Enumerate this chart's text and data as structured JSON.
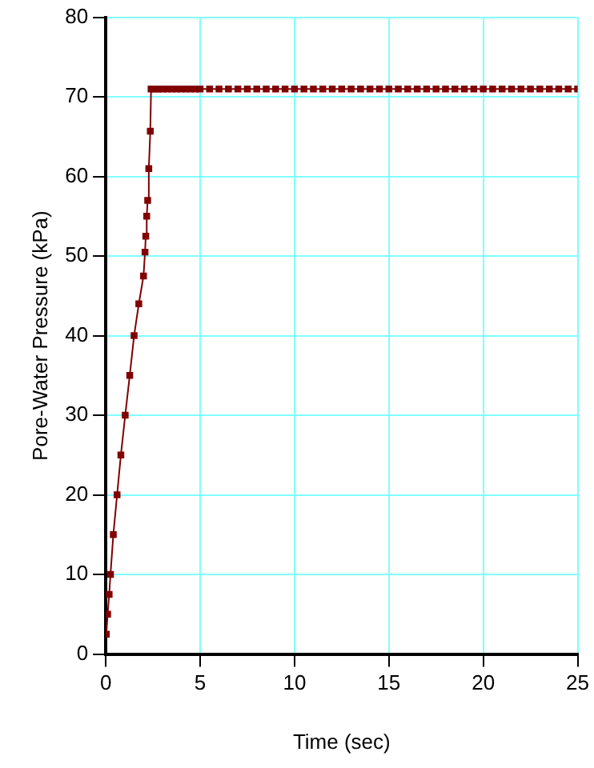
{
  "chart_data": {
    "type": "line",
    "xlabel": "Time (sec)",
    "ylabel": "Pore-Water Pressure (kPa)",
    "marker": "square",
    "line_style": "solid",
    "grid": true,
    "legend": false,
    "xlim": [
      0,
      25
    ],
    "xticks": [
      0,
      5,
      10,
      15,
      20,
      25
    ],
    "ylim": [
      0,
      80
    ],
    "yticks": [
      0,
      10,
      20,
      30,
      40,
      50,
      60,
      70,
      80
    ],
    "series": [
      {
        "color": "#800000",
        "x": [
          0.03,
          0.1,
          0.18,
          0.25,
          0.4,
          0.6,
          0.8,
          1.03,
          1.27,
          1.5,
          1.75,
          2.0,
          2.08,
          2.12,
          2.17,
          2.22,
          2.28,
          2.36,
          2.4,
          2.6,
          2.8,
          3,
          3.25,
          3.5,
          3.75,
          4,
          4.25,
          4.5,
          4.75,
          5,
          5.5,
          6,
          6.5,
          7,
          7.5,
          8,
          8.5,
          9,
          9.5,
          10,
          10.5,
          11,
          11.5,
          12,
          12.5,
          13,
          13.5,
          14,
          14.5,
          15,
          15.5,
          16,
          16.5,
          17,
          17.5,
          18,
          18.5,
          19,
          19.5,
          20,
          20.5,
          21,
          21.5,
          22,
          22.5,
          23,
          23.5,
          24,
          24.5,
          25
        ],
        "values": [
          2.5,
          5,
          7.5,
          10,
          15,
          20,
          25,
          30,
          35,
          40,
          44,
          47.5,
          50.5,
          52.5,
          55,
          57,
          61,
          65.7,
          71,
          71,
          71,
          71,
          71,
          71,
          71,
          71,
          71,
          71,
          71,
          71,
          71,
          71,
          71,
          71,
          71,
          71,
          71,
          71,
          71,
          71,
          71,
          71,
          71,
          71,
          71,
          71,
          71,
          71,
          71,
          71,
          71,
          71,
          71,
          71,
          71,
          71,
          71,
          71,
          71,
          71,
          71,
          71,
          71,
          71,
          71,
          71,
          71,
          71,
          71,
          71
        ]
      }
    ]
  }
}
